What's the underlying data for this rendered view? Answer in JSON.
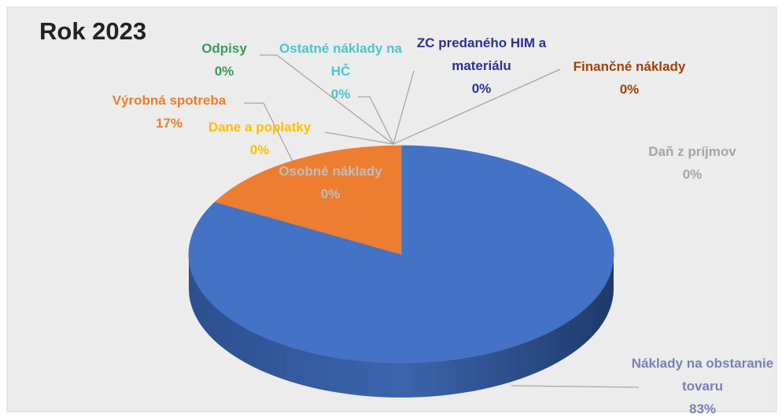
{
  "chart_data": {
    "type": "pie",
    "title": "Rok 2023",
    "categories": [
      "Náklady na obstaranie tovaru",
      "Výrobná spotreba",
      "Osobné náklady",
      "Dane a poplatky",
      "Odpisy",
      "Ostatné náklady na HČ",
      "ZC predaného HIM a materiálu",
      "Finančné náklady",
      "Daň z príjmov"
    ],
    "values": [
      83,
      17,
      0,
      0,
      0,
      0,
      0,
      0,
      0
    ],
    "value_labels": [
      "83%",
      "17%",
      "0%",
      "0%",
      "0%",
      "0%",
      "0%",
      "0%",
      "0%"
    ],
    "colors": [
      "#4472c4",
      "#ed7d31",
      "#a5a5a5",
      "#ffc000",
      "#3a9a5b",
      "#4bc6c8",
      "#2e3192",
      "#a0420a",
      "#a5a5a5"
    ]
  }
}
